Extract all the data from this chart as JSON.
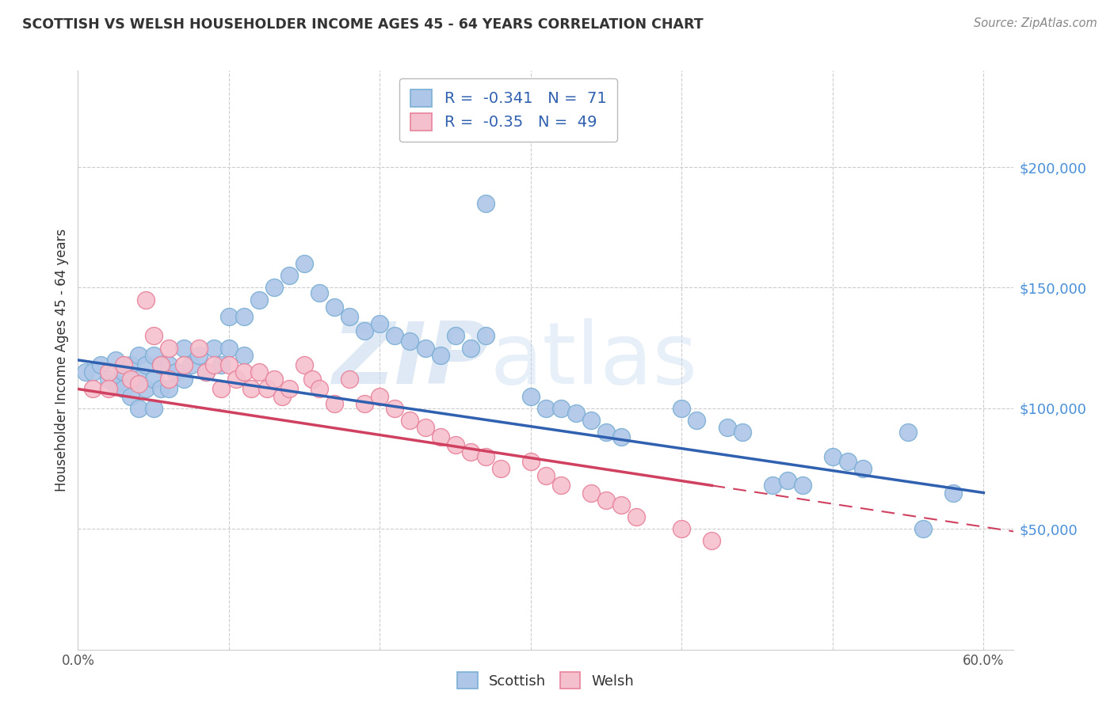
{
  "title": "SCOTTISH VS WELSH HOUSEHOLDER INCOME AGES 45 - 64 YEARS CORRELATION CHART",
  "source": "Source: ZipAtlas.com",
  "ylabel": "Householder Income Ages 45 - 64 years",
  "xlim": [
    0.0,
    0.62
  ],
  "ylim": [
    0,
    240000
  ],
  "xticks": [
    0.0,
    0.1,
    0.2,
    0.3,
    0.4,
    0.5,
    0.6
  ],
  "xticklabels": [
    "0.0%",
    "",
    "",
    "",
    "",
    "",
    "60.0%"
  ],
  "yticks_right": [
    50000,
    100000,
    150000,
    200000
  ],
  "ytick_labels_right": [
    "$50,000",
    "$100,000",
    "$150,000",
    "$200,000"
  ],
  "grid_color": "#cccccc",
  "scottish_color": "#aec6e8",
  "scottish_edge": "#7bafd4",
  "welsh_color": "#f5c0ce",
  "welsh_edge": "#e8829a",
  "scottish_line_color": "#3060b0",
  "welsh_line_color": "#d04060",
  "R_scottish": -0.341,
  "N_scottish": 71,
  "R_welsh": -0.35,
  "N_welsh": 49,
  "legend_text_color": "#3060b0",
  "watermark_zip_color": "#c5d8f0",
  "watermark_atlas_color": "#c5d8f0",
  "scottish_x": [
    0.005,
    0.01,
    0.015,
    0.02,
    0.025,
    0.025,
    0.03,
    0.03,
    0.035,
    0.035,
    0.04,
    0.04,
    0.04,
    0.045,
    0.045,
    0.05,
    0.05,
    0.05,
    0.055,
    0.055,
    0.06,
    0.06,
    0.065,
    0.07,
    0.07,
    0.075,
    0.08,
    0.085,
    0.09,
    0.095,
    0.1,
    0.1,
    0.11,
    0.11,
    0.12,
    0.13,
    0.14,
    0.15,
    0.16,
    0.17,
    0.18,
    0.19,
    0.2,
    0.21,
    0.22,
    0.23,
    0.24,
    0.25,
    0.26,
    0.27,
    0.27,
    0.3,
    0.31,
    0.32,
    0.33,
    0.34,
    0.35,
    0.36,
    0.4,
    0.41,
    0.43,
    0.44,
    0.46,
    0.47,
    0.48,
    0.5,
    0.51,
    0.52,
    0.55,
    0.56,
    0.58
  ],
  "scottish_y": [
    115000,
    115000,
    118000,
    112000,
    120000,
    110000,
    115000,
    108000,
    118000,
    105000,
    122000,
    112000,
    100000,
    118000,
    108000,
    122000,
    112000,
    100000,
    118000,
    108000,
    118000,
    108000,
    115000,
    125000,
    112000,
    118000,
    122000,
    115000,
    125000,
    118000,
    138000,
    125000,
    138000,
    122000,
    145000,
    150000,
    155000,
    160000,
    148000,
    142000,
    138000,
    132000,
    135000,
    130000,
    128000,
    125000,
    122000,
    130000,
    125000,
    185000,
    130000,
    105000,
    100000,
    100000,
    98000,
    95000,
    90000,
    88000,
    100000,
    95000,
    92000,
    90000,
    68000,
    70000,
    68000,
    80000,
    78000,
    75000,
    90000,
    50000,
    65000
  ],
  "welsh_x": [
    0.01,
    0.02,
    0.02,
    0.03,
    0.035,
    0.04,
    0.045,
    0.05,
    0.055,
    0.06,
    0.06,
    0.07,
    0.08,
    0.085,
    0.09,
    0.095,
    0.1,
    0.105,
    0.11,
    0.115,
    0.12,
    0.125,
    0.13,
    0.135,
    0.14,
    0.15,
    0.155,
    0.16,
    0.17,
    0.18,
    0.19,
    0.2,
    0.21,
    0.22,
    0.23,
    0.24,
    0.25,
    0.26,
    0.27,
    0.28,
    0.3,
    0.31,
    0.32,
    0.34,
    0.35,
    0.36,
    0.37,
    0.4,
    0.42
  ],
  "welsh_y": [
    108000,
    115000,
    108000,
    118000,
    112000,
    110000,
    145000,
    130000,
    118000,
    125000,
    112000,
    118000,
    125000,
    115000,
    118000,
    108000,
    118000,
    112000,
    115000,
    108000,
    115000,
    108000,
    112000,
    105000,
    108000,
    118000,
    112000,
    108000,
    102000,
    112000,
    102000,
    105000,
    100000,
    95000,
    92000,
    88000,
    85000,
    82000,
    80000,
    75000,
    78000,
    72000,
    68000,
    65000,
    62000,
    60000,
    55000,
    50000,
    45000
  ]
}
